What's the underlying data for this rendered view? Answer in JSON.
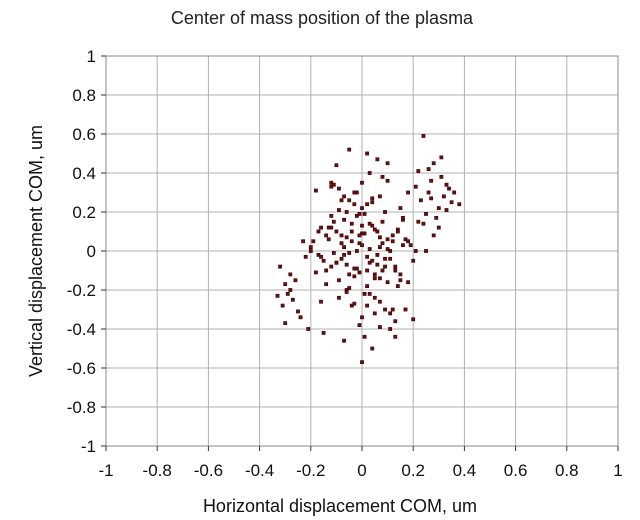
{
  "chart_data": {
    "type": "scatter",
    "title": "Center of mass position of the plasma",
    "xlabel": "Horizontal displacement COM, um",
    "ylabel": "Vertical displacement COM, um",
    "xlim": [
      -1,
      1
    ],
    "ylim": [
      -1,
      1
    ],
    "x_ticks": [
      "-1",
      "-0.8",
      "-0.6",
      "-0.4",
      "-0.2",
      "0",
      "0.2",
      "0.4",
      "0.6",
      "0.8",
      "1"
    ],
    "y_ticks": [
      "1",
      "0.8",
      "0.6",
      "0.4",
      "0.2",
      "0",
      "-0.2",
      "-0.4",
      "-0.6",
      "-0.8",
      "-1"
    ],
    "grid": true,
    "legend": "none",
    "marker_color": "#6b0f0f",
    "series": [
      {
        "x": [
          0.24,
          0.28,
          0.31,
          0.26,
          0.33,
          0.3,
          0.35,
          0.22,
          0.29,
          0.27,
          0.32,
          0.25,
          0.34,
          0.23,
          0.3,
          0.36,
          0.28,
          0.21,
          0.26,
          0.31,
          0.33,
          0.24,
          0.27,
          0.38,
          -0.28,
          -0.3,
          -0.27,
          -0.29,
          -0.26,
          -0.33,
          -0.31,
          -0.25,
          -0.28,
          -0.3,
          -0.32,
          -0.05,
          0.02,
          -0.21,
          0.06,
          -0.1,
          0.1,
          0.18,
          -0.24,
          0.0,
          0.04,
          -0.07,
          0.13,
          -0.15,
          0.2,
          0.08,
          -0.18,
          0.03,
          -0.01,
          0.11,
          -0.12,
          0.07,
          -0.08,
          0.15,
          0.02,
          -0.04,
          0.12,
          -0.16,
          0.05,
          -0.02,
          0.09,
          -0.11,
          0.16,
          -0.06,
          0.01,
          0.14,
          -0.13,
          0.04,
          -0.09,
          0.1,
          -0.03,
          0.06,
          -0.14,
          0.17,
          -0.19,
          0.08,
          -0.05,
          0.13,
          -0.1,
          0.03,
          -0.07,
          0.11,
          -0.17,
          0.05,
          -0.01,
          0.09,
          -0.12,
          0.15,
          -0.04,
          0.02,
          -0.08,
          0.19,
          -0.22,
          0.07,
          -0.06,
          0.12,
          -0.15,
          0.0,
          -0.02,
          0.1,
          -0.11,
          0.14,
          -0.18,
          0.04,
          -0.03,
          0.08,
          -0.09,
          0.16,
          -0.14,
          0.01,
          -0.05,
          0.21,
          -0.2,
          0.06,
          -0.08,
          0.11,
          -0.13,
          0.03,
          -0.01,
          0.09,
          -0.1,
          0.13,
          -0.16,
          0.05,
          -0.04,
          0.07,
          -0.07,
          0.18,
          -0.12,
          0.02,
          -0.06,
          -0.02,
          0.0,
          0.02,
          -0.04,
          0.04,
          -0.06,
          0.06,
          0.01,
          -0.03,
          0.03,
          -0.05,
          0.05,
          -0.01,
          0.07,
          -0.07,
          0.08,
          -0.08,
          0.0,
          0.1,
          -0.1,
          0.12,
          -0.12,
          0.14,
          -0.14,
          0.16,
          -0.16,
          0.0,
          0.03,
          -0.03,
          0.05,
          -0.05,
          0.07,
          -0.07,
          0.02,
          -0.02,
          0.09,
          -0.09,
          0.11,
          -0.11,
          0.0,
          0.22,
          0.18,
          0.25,
          0.2,
          0.15,
          -0.23,
          -0.2,
          -0.17,
          0.17,
          0.13,
          0.1,
          0.07,
          -0.12,
          -0.09,
          -0.06,
          0.04,
          -0.03,
          0.0,
          0.01,
          -0.01
        ],
        "y": [
          0.59,
          0.45,
          0.38,
          0.3,
          0.34,
          0.22,
          0.25,
          0.41,
          0.17,
          0.36,
          0.28,
          0.19,
          0.32,
          0.26,
          0.12,
          0.3,
          0.08,
          0.33,
          0.42,
          0.48,
          0.21,
          0.14,
          0.27,
          0.24,
          -0.2,
          -0.17,
          -0.25,
          -0.22,
          -0.15,
          -0.23,
          -0.28,
          -0.31,
          -0.12,
          -0.37,
          -0.08,
          0.52,
          0.5,
          -0.4,
          0.47,
          0.44,
          0.45,
          0.3,
          -0.34,
          -0.57,
          -0.5,
          -0.46,
          -0.44,
          -0.42,
          -0.35,
          0.38,
          0.31,
          0.4,
          -0.38,
          -0.4,
          0.35,
          0.28,
          0.26,
          0.22,
          0.24,
          -0.28,
          -0.3,
          -0.26,
          -0.32,
          0.18,
          0.2,
          0.15,
          0.16,
          -0.2,
          -0.22,
          -0.18,
          0.12,
          0.25,
          -0.24,
          -0.16,
          0.3,
          0.1,
          0.08,
          0.06,
          0.05,
          -0.1,
          -0.12,
          -0.08,
          -0.06,
          0.14,
          0.02,
          0.0,
          -0.02,
          -0.14,
          0.04,
          -0.04,
          0.12,
          -0.12,
          0.1,
          -0.1,
          0.08,
          0.03,
          -0.03,
          0.07,
          -0.07,
          0.05,
          -0.05,
          0.09,
          -0.09,
          0.01,
          -0.01,
          0.11,
          -0.11,
          0.13,
          -0.13,
          0.15,
          -0.15,
          0.17,
          -0.17,
          0.19,
          -0.19,
          0.0,
          0.02,
          -0.02,
          0.04,
          -0.04,
          0.06,
          -0.06,
          0.08,
          -0.08,
          0.1,
          -0.1,
          0.12,
          -0.12,
          0.14,
          -0.14,
          0.16,
          -0.16,
          0.18,
          -0.18,
          0.2,
          0.0,
          0.03,
          -0.03,
          0.05,
          -0.05,
          0.07,
          -0.07,
          0.09,
          -0.09,
          0.01,
          -0.01,
          0.11,
          -0.11,
          0.02,
          -0.02,
          0.04,
          -0.04,
          0.13,
          0.06,
          -0.06,
          0.08,
          -0.08,
          0.1,
          -0.1,
          0.03,
          -0.03,
          0.22,
          -0.22,
          0.24,
          -0.24,
          0.26,
          -0.26,
          0.28,
          -0.28,
          0.3,
          -0.3,
          0.32,
          -0.32,
          0.34,
          -0.34,
          0.15,
          0.05,
          0.0,
          -0.05,
          -0.15,
          0.05,
          0.0,
          0.1,
          -0.3,
          -0.36,
          0.36,
          -0.39,
          0.33,
          0.21,
          -0.21,
          0.27,
          -0.27,
          0.35,
          -0.44,
          0.19
        ]
      }
    ]
  }
}
